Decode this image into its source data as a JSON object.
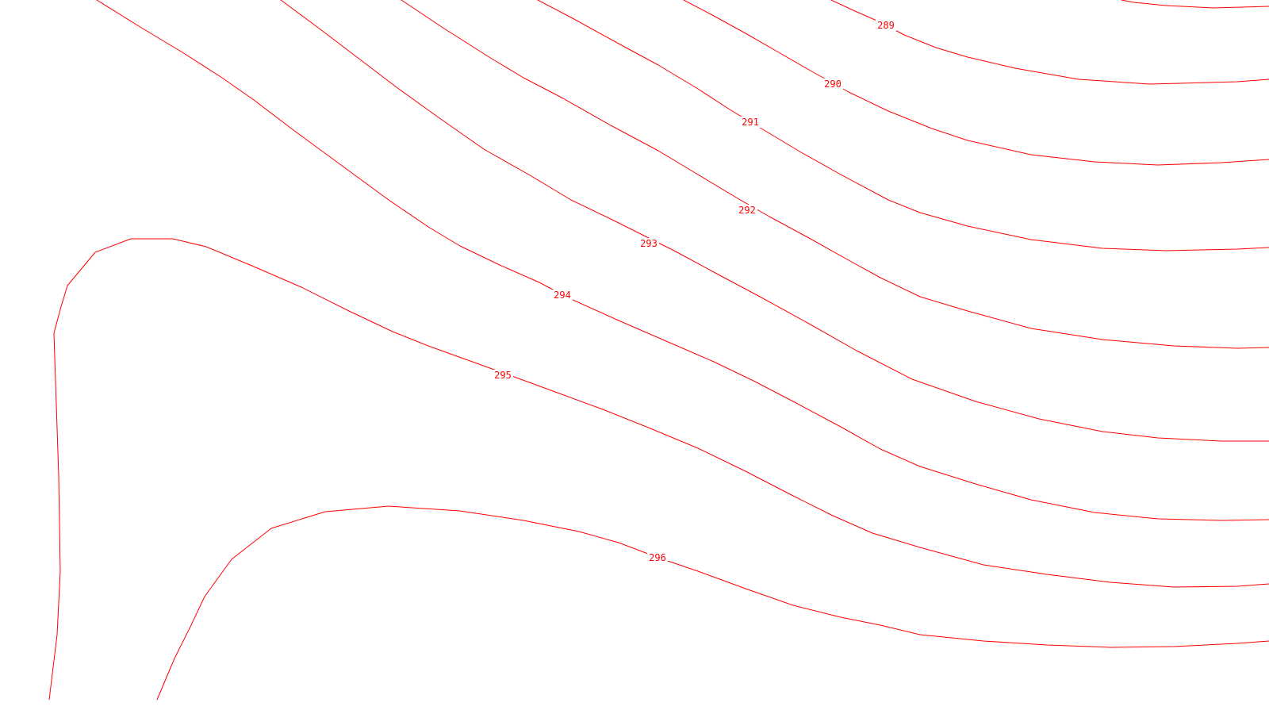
{
  "map": {
    "type": "isoline-contour-map",
    "line_color": "#ff0000",
    "background_color": "#ffffff",
    "contours": [
      {
        "level": 289,
        "label": "289"
      },
      {
        "level": 290,
        "label": "290"
      },
      {
        "level": 291,
        "label": "291"
      },
      {
        "level": 292,
        "label": "292"
      },
      {
        "level": 293,
        "label": "293"
      },
      {
        "level": 294,
        "label": "294"
      },
      {
        "level": 295,
        "label": "295"
      },
      {
        "level": 296,
        "label": "296"
      }
    ]
  }
}
